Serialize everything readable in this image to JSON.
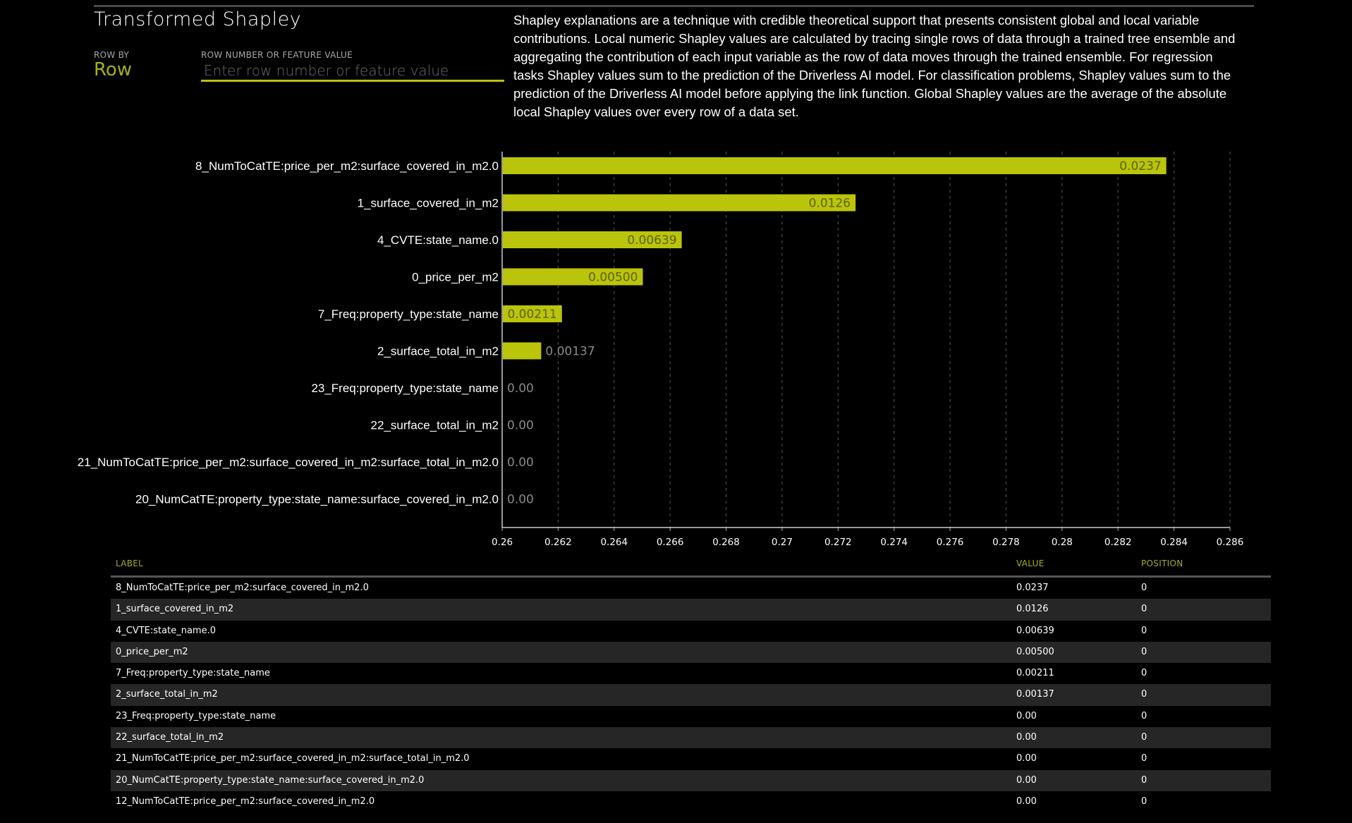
{
  "header": {
    "title": "Transformed Shapley",
    "row_by_label": "ROW BY",
    "row_by_value": "Row",
    "row_number_label": "ROW NUMBER OR FEATURE VALUE",
    "row_number_placeholder": "Enter row number or feature value",
    "row_number_value": ""
  },
  "description": "Shapley explanations are a technique with credible theoretical support that presents consistent global and local variable contributions. Local numeric Shapley values are calculated by tracing single rows of data through a trained tree ensemble and aggregating the contribution of each input variable as the row of data moves through the trained ensemble. For regression tasks Shapley values sum to the prediction of the Driverless AI model. For classification problems, Shapley values sum to the prediction of the Driverless AI model before applying the link function. Global Shapley values are the average of the absolute local Shapley values over every row of a data set.",
  "colors": {
    "bar": "#bac40a",
    "bar_label": "#5c6200",
    "outside_label": "#8a8a8a",
    "accent": "#a6ae1f"
  },
  "chart_data": {
    "type": "bar",
    "orientation": "horizontal",
    "title": "",
    "xlabel": "",
    "ylabel": "",
    "xlim": [
      0.26,
      0.286
    ],
    "grid": true,
    "x_ticks": [
      "0.26",
      "0.262",
      "0.264",
      "0.266",
      "0.268",
      "0.27",
      "0.272",
      "0.274",
      "0.276",
      "0.278",
      "0.28",
      "0.282",
      "0.284",
      "0.286"
    ],
    "categories": [
      "8_NumToCatTE:price_per_m2:surface_covered_in_m2.0",
      "1_surface_covered_in_m2",
      "4_CVTE:state_name.0",
      "0_price_per_m2",
      "7_Freq:property_type:state_name",
      "2_surface_total_in_m2",
      "23_Freq:property_type:state_name",
      "22_surface_total_in_m2",
      "21_NumToCatTE:price_per_m2:surface_covered_in_m2:surface_total_in_m2.0",
      "20_NumCatTE:property_type:state_name:surface_covered_in_m2.0"
    ],
    "values": [
      0.0237,
      0.0126,
      0.00639,
      0.005,
      0.00211,
      0.00137,
      0,
      0,
      0,
      0
    ],
    "value_labels": [
      "0.0237",
      "0.0126",
      "0.00639",
      "0.00500",
      "0.00211",
      "0.00137",
      "0.00",
      "0.00",
      "0.00",
      "0.00"
    ]
  },
  "table": {
    "headers": {
      "label": "LABEL",
      "value": "VALUE",
      "position": "POSITION"
    },
    "rows": [
      {
        "label": "8_NumToCatTE:price_per_m2:surface_covered_in_m2.0",
        "value": "0.0237",
        "position": "0"
      },
      {
        "label": "1_surface_covered_in_m2",
        "value": "0.0126",
        "position": "0"
      },
      {
        "label": "4_CVTE:state_name.0",
        "value": "0.00639",
        "position": "0"
      },
      {
        "label": "0_price_per_m2",
        "value": "0.00500",
        "position": "0"
      },
      {
        "label": "7_Freq:property_type:state_name",
        "value": "0.00211",
        "position": "0"
      },
      {
        "label": "2_surface_total_in_m2",
        "value": "0.00137",
        "position": "0"
      },
      {
        "label": "23_Freq:property_type:state_name",
        "value": "0.00",
        "position": "0"
      },
      {
        "label": "22_surface_total_in_m2",
        "value": "0.00",
        "position": "0"
      },
      {
        "label": "21_NumToCatTE:price_per_m2:surface_covered_in_m2:surface_total_in_m2.0",
        "value": "0.00",
        "position": "0"
      },
      {
        "label": "20_NumCatTE:property_type:state_name:surface_covered_in_m2.0",
        "value": "0.00",
        "position": "0"
      },
      {
        "label": "12_NumToCatTE:price_per_m2:surface_covered_in_m2.0",
        "value": "0.00",
        "position": "0"
      }
    ]
  }
}
